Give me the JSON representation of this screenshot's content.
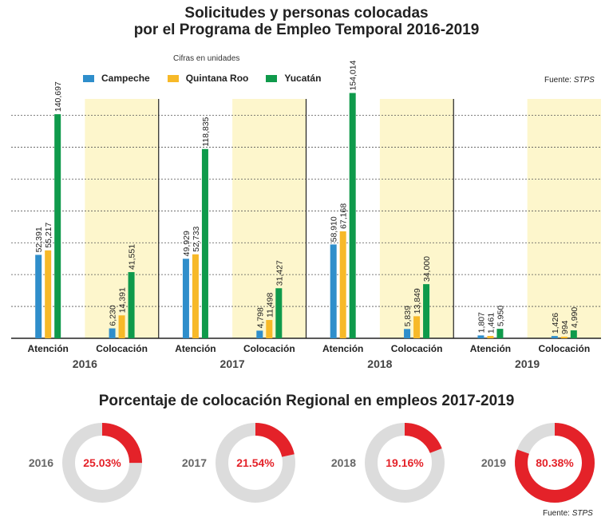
{
  "header": {
    "title_line1": "Solicitudes y personas colocadas",
    "title_line2": "por el Programa de Empleo Temporal 2016-2019",
    "units_note": "Cifras en unidades",
    "source_label": "Fuente:",
    "source_name": "STPS"
  },
  "colors": {
    "campeche": "#2f8ecb",
    "quintana_roo": "#f7b928",
    "yucatan": "#0f9a4b",
    "colocacion_bg": "#fdf6cc",
    "donut_fill": "#e42229",
    "donut_track": "#dcdcdc"
  },
  "chart_data": [
    {
      "type": "bar",
      "title": "Solicitudes y personas colocadas por el Programa de Empleo Temporal 2016-2019",
      "subtitle": "Cifras en unidades",
      "years": [
        "2016",
        "2017",
        "2018",
        "2019"
      ],
      "groups": [
        "Atención",
        "Colocación"
      ],
      "series": [
        {
          "name": "Campeche",
          "color": "#2f8ecb",
          "values": [
            [
              52391,
              6230
            ],
            [
              49929,
              4798
            ],
            [
              58910,
              5839
            ],
            [
              1807,
              1426
            ]
          ]
        },
        {
          "name": "Quintana Roo",
          "color": "#f7b928",
          "values": [
            [
              55217,
              14391
            ],
            [
              52733,
              11498
            ],
            [
              67168,
              13849
            ],
            [
              1461,
              994
            ]
          ]
        },
        {
          "name": "Yucatán",
          "color": "#0f9a4b",
          "values": [
            [
              140697,
              41551
            ],
            [
              118835,
              31427
            ],
            [
              154014,
              34000
            ],
            [
              5950,
              4990
            ]
          ]
        }
      ],
      "value_labels": [
        [
          [
            "52,391",
            "55,217",
            "140,697"
          ],
          [
            "6,230",
            "14,391",
            "41,551"
          ]
        ],
        [
          [
            "49,929",
            "52,733",
            "118,835"
          ],
          [
            "4,798",
            "11,498",
            "31,427"
          ]
        ],
        [
          [
            "58,910",
            "67,168",
            "154,014"
          ],
          [
            "5,839",
            "13,849",
            "34,000"
          ]
        ],
        [
          [
            "1,807",
            "1,461",
            "5,950"
          ],
          [
            "1,426",
            "994",
            "4,990"
          ]
        ]
      ],
      "ylim": [
        0,
        160000
      ],
      "grid": true,
      "legend": "top-left"
    },
    {
      "type": "pie",
      "title": "Porcentaje de colocación Regional en empleos 2017-2019",
      "categories": [
        "2016",
        "2017",
        "2018",
        "2019"
      ],
      "values": [
        25.03,
        21.54,
        19.16,
        80.38
      ],
      "labels": [
        "25.03%",
        "21.54%",
        "19.16%",
        "80.38%"
      ]
    }
  ]
}
